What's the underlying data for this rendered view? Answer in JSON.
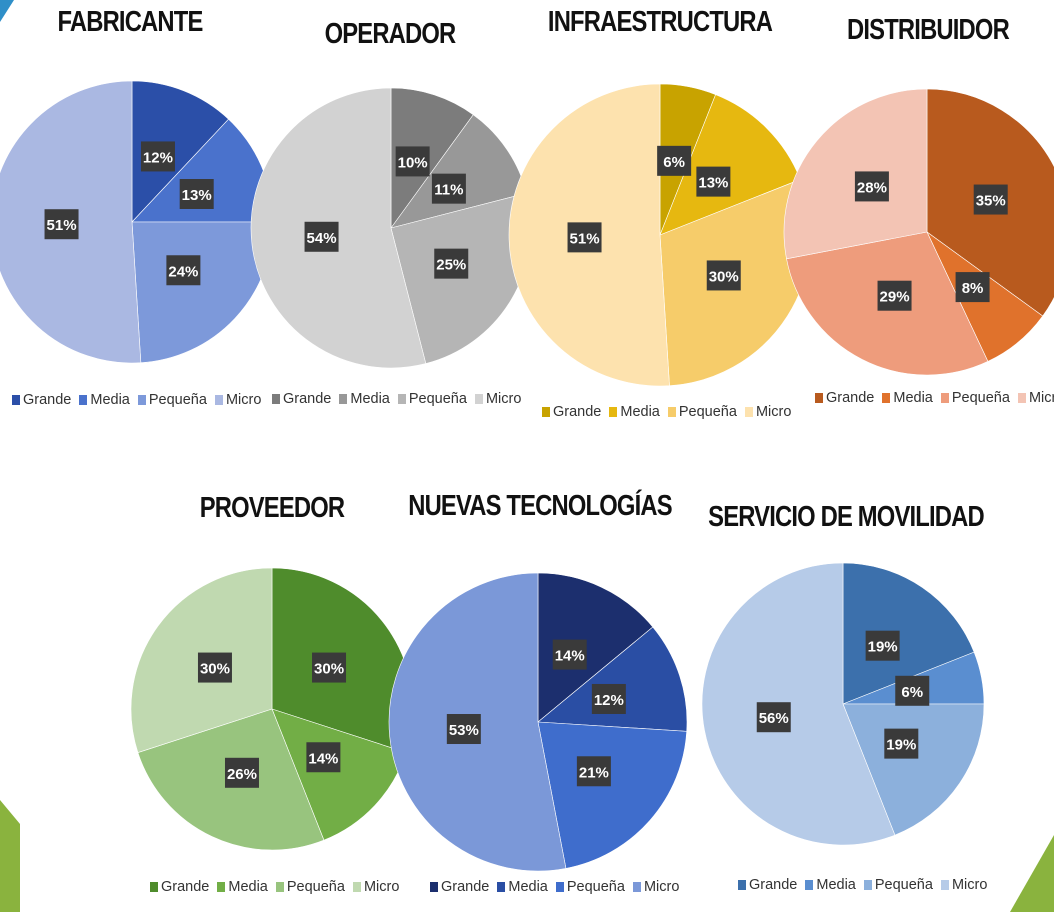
{
  "legend_labels": [
    "Grande",
    "Media",
    "Pequeña",
    "Micro"
  ],
  "chart_data": [
    {
      "type": "pie",
      "title": "FABRICANTE",
      "categories": [
        "Grande",
        "Media",
        "Pequeña",
        "Micro"
      ],
      "values": [
        12,
        13,
        24,
        51
      ],
      "colors": [
        "#2b4fa8",
        "#4a72cc",
        "#7d99da",
        "#aab8e2"
      ]
    },
    {
      "type": "pie",
      "title": "OPERADOR",
      "categories": [
        "Grande",
        "Media",
        "Pequeña",
        "Micro"
      ],
      "values": [
        10,
        11,
        25,
        54
      ],
      "colors": [
        "#7c7c7c",
        "#989898",
        "#b5b5b5",
        "#d2d2d2"
      ]
    },
    {
      "type": "pie",
      "title": "INFRAESTRUCTURA",
      "categories": [
        "Grande",
        "Media",
        "Pequeña",
        "Micro"
      ],
      "values": [
        6,
        13,
        30,
        51
      ],
      "colors": [
        "#c8a300",
        "#e6b810",
        "#f6cc6a",
        "#fde2ae"
      ]
    },
    {
      "type": "pie",
      "title": "DISTRIBUIDOR",
      "categories": [
        "Grande",
        "Media",
        "Pequeña",
        "Micro"
      ],
      "values": [
        35,
        8,
        29,
        28
      ],
      "colors": [
        "#b85a1e",
        "#e0722c",
        "#ee9c7c",
        "#f3c4b4"
      ]
    },
    {
      "type": "pie",
      "title": "PROVEEDOR",
      "categories": [
        "Grande",
        "Media",
        "Pequeña",
        "Micro"
      ],
      "values": [
        30,
        14,
        26,
        30
      ],
      "colors": [
        "#4f8c2c",
        "#72ae46",
        "#98c47e",
        "#c0d9b0"
      ]
    },
    {
      "type": "pie",
      "title": "NUEVAS TECNOLOGÍAS",
      "categories": [
        "Grande",
        "Media",
        "Pequeña",
        "Micro"
      ],
      "values": [
        14,
        12,
        21,
        53
      ],
      "colors": [
        "#1c2f6e",
        "#2a4ea4",
        "#3f6dcc",
        "#7b98d8"
      ]
    },
    {
      "type": "pie",
      "title": "SERVICIO DE MOVILIDAD",
      "categories": [
        "Grande",
        "Media",
        "Pequeña",
        "Micro"
      ],
      "values": [
        19,
        6,
        19,
        56
      ],
      "colors": [
        "#3c70ac",
        "#5a8ed0",
        "#8cb0dc",
        "#b6cbe8"
      ]
    }
  ]
}
